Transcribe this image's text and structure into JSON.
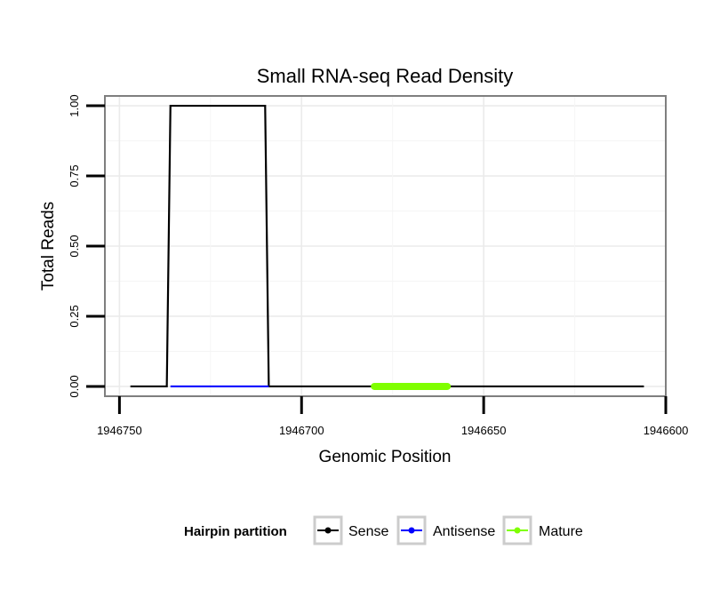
{
  "chart_data": {
    "type": "line",
    "title": "Small RNA-seq Read Density",
    "xlabel": "Genomic Position",
    "ylabel": "Total Reads",
    "x_reversed": true,
    "xlim": [
      1946754,
      1946600
    ],
    "ylim": [
      -0.035,
      1.035
    ],
    "x_ticks": [
      1946750,
      1946700,
      1946650,
      1946600
    ],
    "x_tick_labels": [
      "1946750",
      "1946700",
      "1946650",
      "1946600"
    ],
    "y_ticks": [
      0,
      0.25,
      0.5,
      0.75,
      1.0
    ],
    "y_tick_labels": [
      "0.00",
      "0.25",
      "0.50",
      "0.75",
      "1.00"
    ],
    "grid": true,
    "legend_position": "bottom",
    "legend_title": "Hairpin partition",
    "series": [
      {
        "name": "Sense",
        "color": "#000000",
        "x": [
          1946747,
          1946737,
          1946736,
          1946710,
          1946709,
          1946606
        ],
        "y": [
          0,
          0,
          1,
          1,
          0,
          0
        ]
      },
      {
        "name": "Antisense",
        "color": "#0000ff",
        "x": [
          1946736,
          1946709
        ],
        "y": [
          0,
          0
        ]
      },
      {
        "name": "Mature",
        "color": "#7fff00",
        "x": [
          1946680,
          1946660
        ],
        "y": [
          0,
          0
        ]
      }
    ]
  }
}
